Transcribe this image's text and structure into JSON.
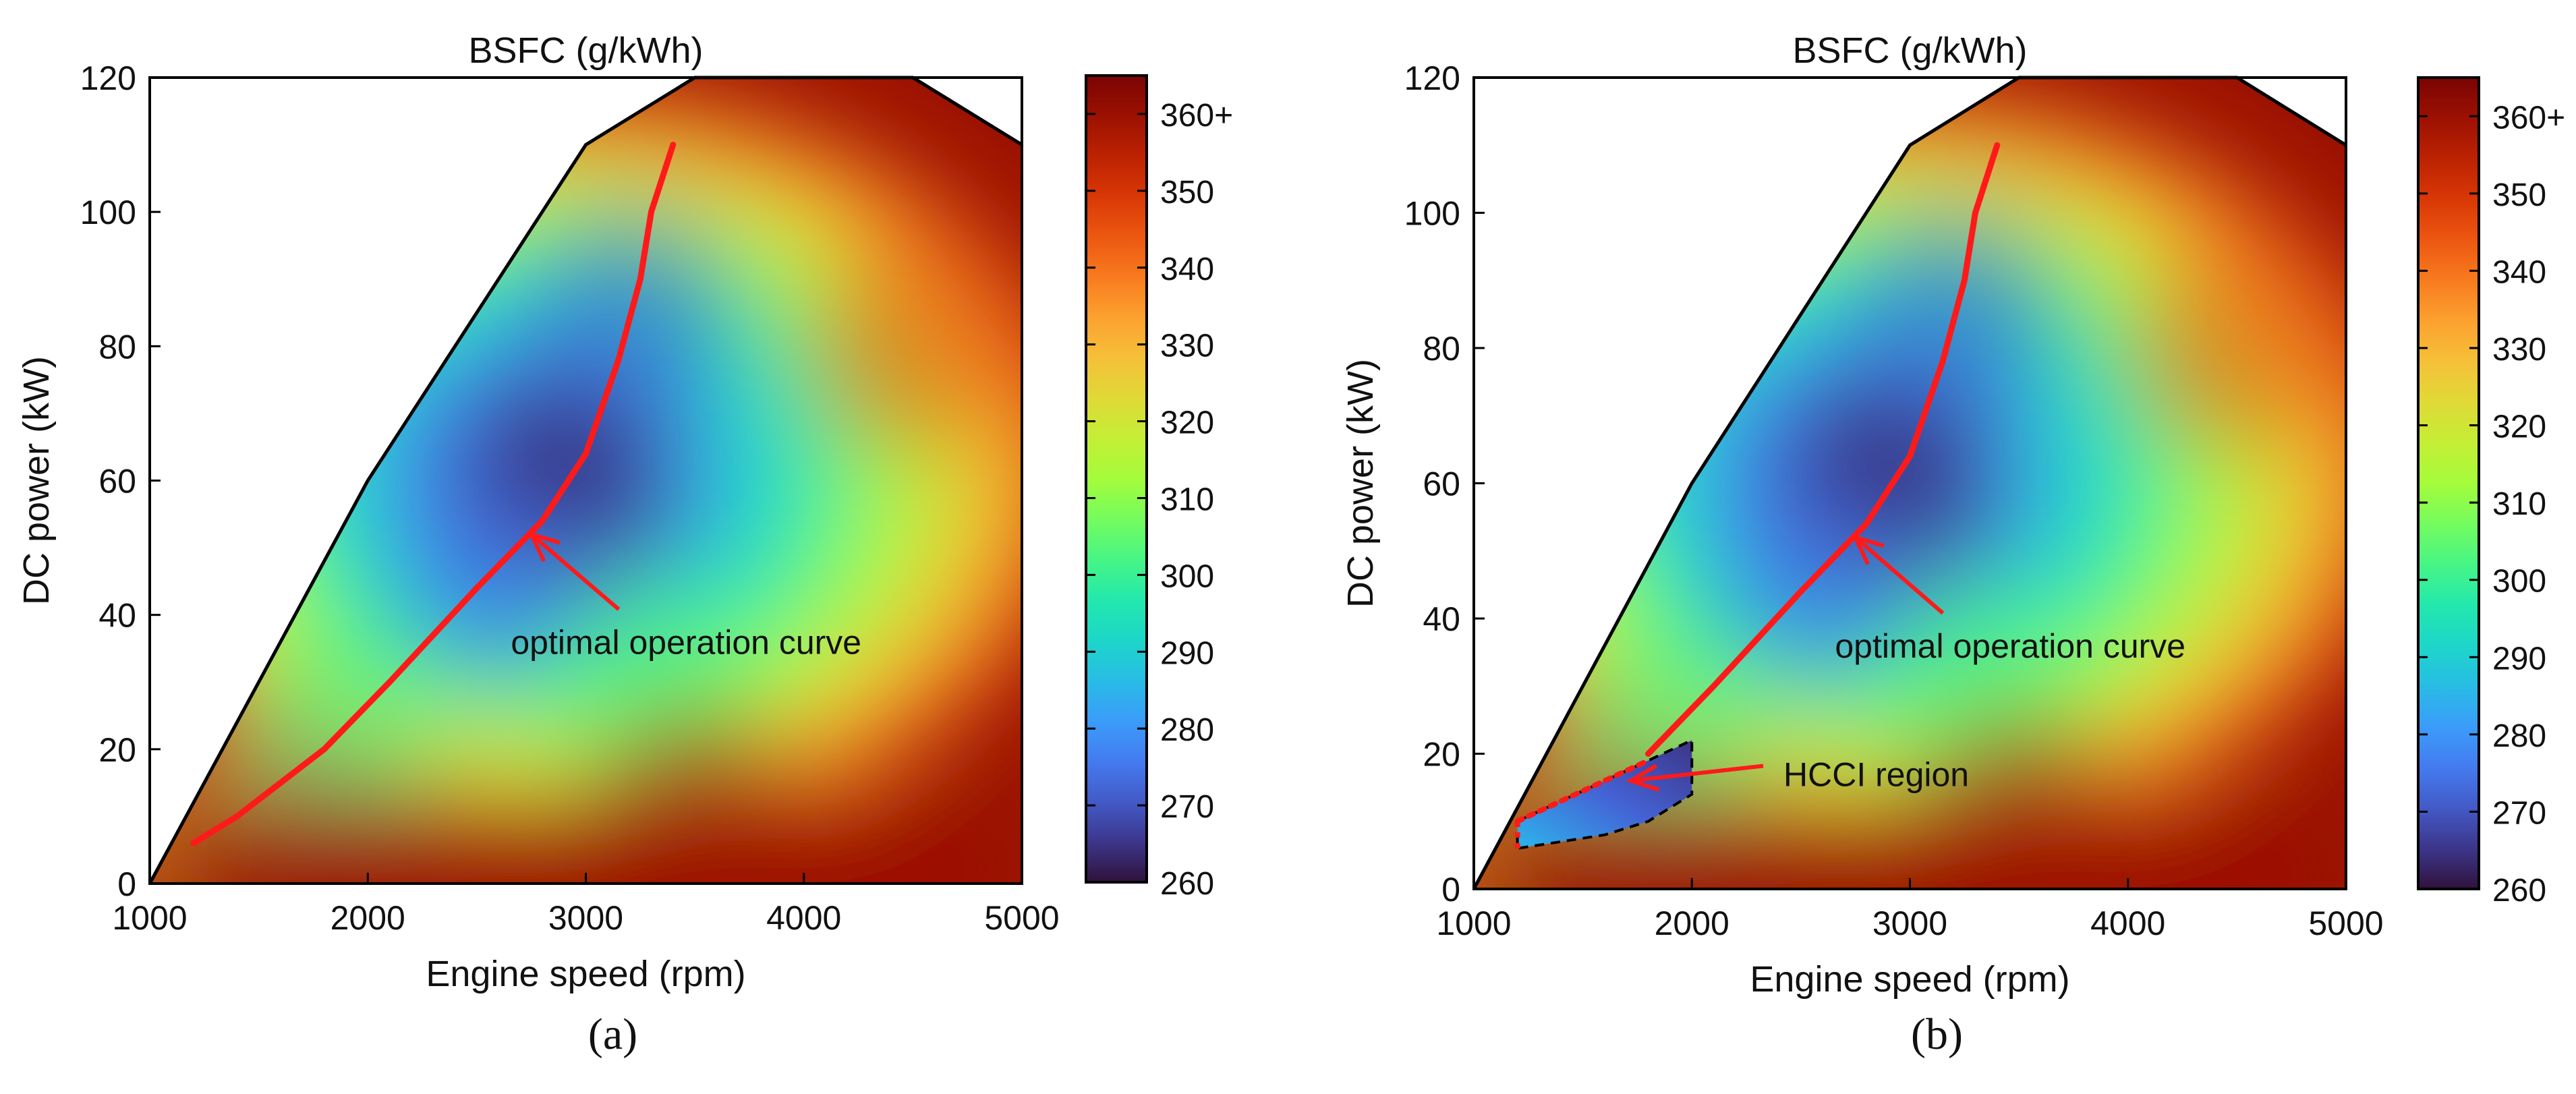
{
  "chart_data": [
    {
      "type": "heatmap",
      "panel_label": "(a)",
      "title": "BSFC (g/kWh)",
      "xlabel": "Engine speed (rpm)",
      "ylabel": "DC power (kW)",
      "xlim": [
        1000,
        5000
      ],
      "ylim": [
        0,
        120
      ],
      "xticks": [
        1000,
        2000,
        3000,
        4000,
        5000
      ],
      "yticks": [
        0,
        20,
        40,
        60,
        80,
        100,
        120
      ],
      "colorbar": {
        "min": 260,
        "max": 365,
        "ticks": [
          "260",
          "270",
          "280",
          "290",
          "300",
          "310",
          "320",
          "330",
          "340",
          "350",
          "360+"
        ],
        "tick_values": [
          260,
          270,
          280,
          290,
          300,
          310,
          320,
          330,
          340,
          350,
          360
        ]
      },
      "colormap": "turbo",
      "envelope": [
        [
          1000,
          0
        ],
        [
          2000,
          60
        ],
        [
          3000,
          110
        ],
        [
          3500,
          120
        ],
        [
          4500,
          120
        ],
        [
          5000,
          110
        ],
        [
          5000,
          0
        ]
      ],
      "bsfc_field": [
        {
          "x": 2900,
          "y": 60,
          "value": 262
        },
        {
          "x": 2600,
          "y": 45,
          "value": 275
        },
        {
          "x": 3200,
          "y": 85,
          "value": 272
        },
        {
          "x": 1800,
          "y": 20,
          "value": 300
        },
        {
          "x": 3300,
          "y": 30,
          "value": 305
        },
        {
          "x": 4500,
          "y": 80,
          "value": 345
        },
        {
          "x": 3500,
          "y": 10,
          "value": 360
        },
        {
          "x": 1200,
          "y": 5,
          "value": 330
        }
      ],
      "series": [
        {
          "name": "optimal operation curve",
          "color": "#ff1a1a",
          "x": [
            1200,
            1400,
            1800,
            2100,
            2500,
            2800,
            3000,
            3150,
            3250,
            3300,
            3400
          ],
          "y": [
            6,
            10,
            20,
            30,
            44,
            54,
            64,
            78,
            90,
            100,
            110
          ]
        }
      ],
      "annotations": [
        {
          "text": "optimal operation curve",
          "text_at": [
            2780,
            36
          ],
          "arrow_to": [
            2750,
            52
          ]
        }
      ]
    },
    {
      "type": "heatmap",
      "panel_label": "(b)",
      "title": "BSFC (g/kWh)",
      "xlabel": "Engine speed (rpm)",
      "ylabel": "DC power (kW)",
      "xlim": [
        1000,
        5000
      ],
      "ylim": [
        0,
        120
      ],
      "xticks": [
        1000,
        2000,
        3000,
        4000,
        5000
      ],
      "yticks": [
        0,
        20,
        40,
        60,
        80,
        100,
        120
      ],
      "colorbar": {
        "min": 260,
        "max": 365,
        "ticks": [
          "260",
          "270",
          "280",
          "290",
          "300",
          "310",
          "320",
          "330",
          "340",
          "350",
          "360+"
        ],
        "tick_values": [
          260,
          270,
          280,
          290,
          300,
          310,
          320,
          330,
          340,
          350,
          360
        ]
      },
      "colormap": "turbo",
      "envelope": [
        [
          1000,
          0
        ],
        [
          2000,
          60
        ],
        [
          3000,
          110
        ],
        [
          3500,
          120
        ],
        [
          4500,
          120
        ],
        [
          5000,
          110
        ],
        [
          5000,
          0
        ]
      ],
      "bsfc_field": [
        {
          "x": 2900,
          "y": 60,
          "value": 262
        },
        {
          "x": 2600,
          "y": 45,
          "value": 275
        },
        {
          "x": 3200,
          "y": 85,
          "value": 272
        },
        {
          "x": 1800,
          "y": 20,
          "value": 300
        },
        {
          "x": 3300,
          "y": 30,
          "value": 305
        },
        {
          "x": 4500,
          "y": 80,
          "value": 345
        },
        {
          "x": 3500,
          "y": 10,
          "value": 360
        },
        {
          "x": 1200,
          "y": 5,
          "value": 330
        }
      ],
      "hcci_region": {
        "label": "HCCI region",
        "boundary": [
          [
            1200,
            10
          ],
          [
            1400,
            13
          ],
          [
            1600,
            16
          ],
          [
            1800,
            19
          ],
          [
            2000,
            22
          ],
          [
            2000,
            14
          ],
          [
            1800,
            10
          ],
          [
            1600,
            8
          ],
          [
            1400,
            7
          ],
          [
            1200,
            6
          ]
        ],
        "center_value": 265
      },
      "series": [
        {
          "name": "optimal operation curve",
          "color": "#ff1a1a",
          "x": [
            1800,
            2100,
            2500,
            2800,
            3000,
            3150,
            3250,
            3300,
            3400
          ],
          "y": [
            20,
            30,
            44,
            54,
            64,
            78,
            90,
            100,
            110
          ]
        },
        {
          "name": "HCCI boundary (dotted red)",
          "color": "#ff1a1a",
          "x": [
            1200,
            1400,
            1600,
            1800
          ],
          "y": [
            10,
            13,
            16,
            19
          ]
        }
      ],
      "annotations": [
        {
          "text": "optimal operation curve",
          "text_at": [
            2780,
            36
          ],
          "arrow_to": [
            2750,
            52
          ]
        },
        {
          "text": "HCCI region",
          "text_at": [
            2420,
            17
          ],
          "arrow_to": [
            1720,
            16
          ]
        }
      ]
    }
  ]
}
